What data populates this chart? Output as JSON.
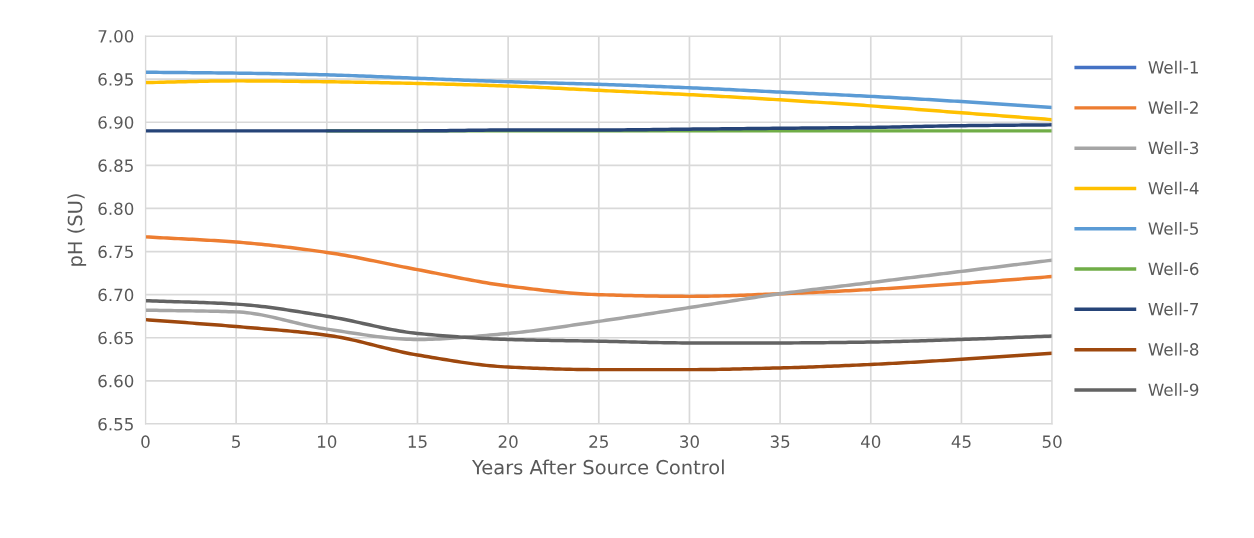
{
  "chart_data": {
    "type": "line",
    "xlabel": "Years After Source Control",
    "ylabel": "pH (SU)",
    "x": [
      0,
      5,
      10,
      15,
      20,
      25,
      30,
      35,
      40,
      45,
      50
    ],
    "xlim": [
      0,
      50
    ],
    "xticks": [
      0,
      5,
      10,
      15,
      20,
      25,
      30,
      35,
      40,
      45,
      50
    ],
    "ylim": [
      6.55,
      7.0
    ],
    "yticks": [
      {
        "value": 6.55,
        "label": "6.55"
      },
      {
        "value": 6.6,
        "label": "6.60"
      },
      {
        "value": 6.65,
        "label": "6.65"
      },
      {
        "value": 6.7,
        "label": "6.70"
      },
      {
        "value": 6.75,
        "label": "6.75"
      },
      {
        "value": 6.8,
        "label": "6.80"
      },
      {
        "value": 6.85,
        "label": "6.85"
      },
      {
        "value": 6.9,
        "label": "6.90"
      },
      {
        "value": 6.95,
        "label": "6.95"
      },
      {
        "value": 7.0,
        "label": "7.00"
      }
    ],
    "grid": true,
    "legend": "right",
    "marker": "none",
    "line_style": "solid",
    "series": [
      {
        "name": "Well-1",
        "color": "#4472c4",
        "values": [
          null,
          null,
          null,
          null,
          null,
          null,
          null,
          null,
          null,
          null,
          null
        ]
      },
      {
        "name": "Well-2",
        "color": "#ed7d31",
        "values": [
          6.767,
          6.761,
          6.749,
          6.729,
          6.71,
          6.7,
          6.698,
          6.701,
          6.706,
          6.713,
          6.721
        ]
      },
      {
        "name": "Well-3",
        "color": "#a5a5a5",
        "values": [
          6.682,
          6.68,
          6.66,
          6.648,
          6.655,
          6.669,
          6.685,
          6.701,
          6.714,
          6.727,
          6.74
        ]
      },
      {
        "name": "Well-4",
        "color": "#ffc000",
        "values": [
          6.946,
          6.948,
          6.947,
          6.945,
          6.942,
          6.937,
          6.932,
          6.926,
          6.919,
          6.911,
          6.903
        ]
      },
      {
        "name": "Well-5",
        "color": "#5b9bd5",
        "values": [
          6.958,
          6.957,
          6.955,
          6.951,
          6.947,
          6.944,
          6.94,
          6.935,
          6.93,
          6.924,
          6.917
        ]
      },
      {
        "name": "Well-6",
        "color": "#70ad47",
        "values": [
          null,
          null,
          6.89,
          6.89,
          6.89,
          6.89,
          6.89,
          6.89,
          6.89,
          6.89,
          6.89
        ]
      },
      {
        "name": "Well-7",
        "color": "#264478",
        "values": [
          6.89,
          6.89,
          6.89,
          6.89,
          6.891,
          6.891,
          6.892,
          6.893,
          6.894,
          6.896,
          6.897
        ]
      },
      {
        "name": "Well-8",
        "color": "#9e480e",
        "values": [
          6.671,
          6.663,
          6.653,
          6.63,
          6.616,
          6.613,
          6.613,
          6.615,
          6.619,
          6.625,
          6.632
        ]
      },
      {
        "name": "Well-9",
        "color": "#636363",
        "values": [
          6.693,
          6.689,
          6.675,
          6.655,
          6.648,
          6.646,
          6.644,
          6.644,
          6.645,
          6.648,
          6.652
        ]
      }
    ]
  }
}
